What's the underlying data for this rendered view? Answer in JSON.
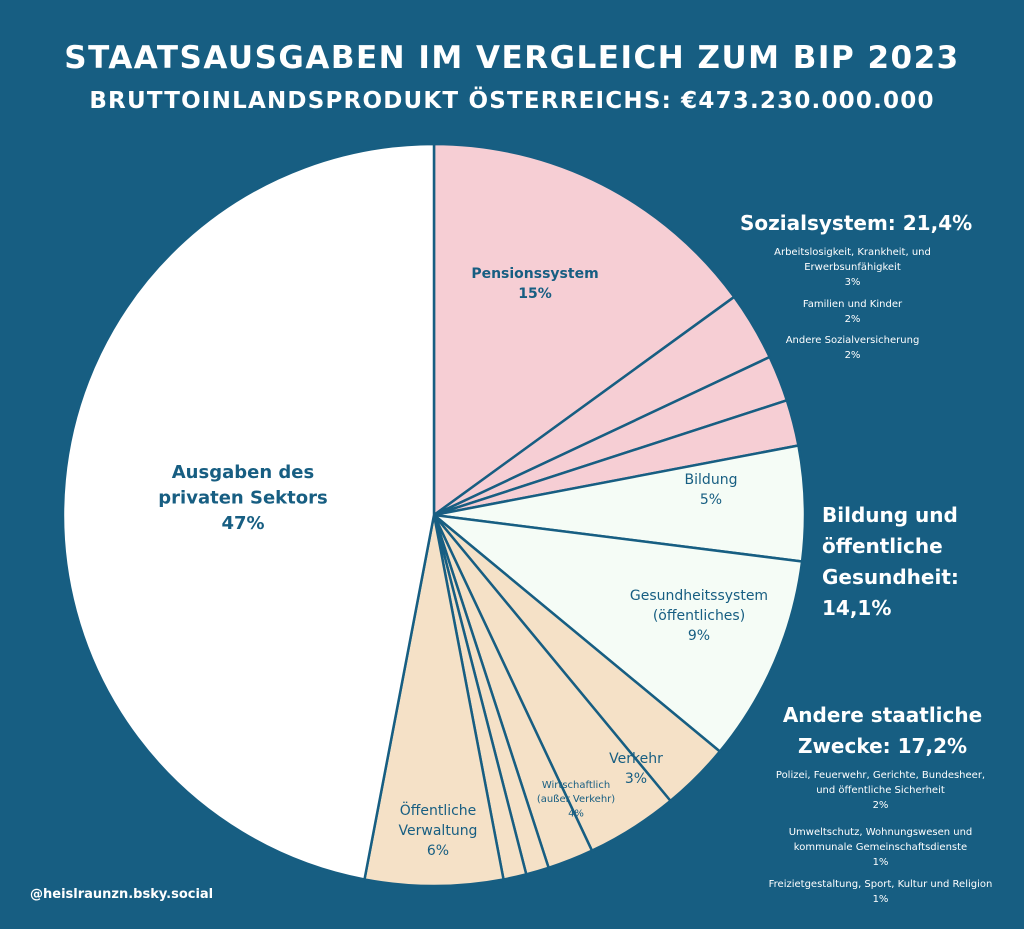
{
  "title": "STAATSAUSGABEN IM VERGLEICH ZUM BIP 2023",
  "subtitle": "BRUTTOINLANDSPRODUKT ÖSTERREICHS: €473.230.000.000",
  "credit": "@heislraunzn.bsky.social",
  "colors": {
    "background": "#175e82",
    "social": "#f6ced4",
    "health": "#f5fcf6",
    "other": "#f5e1c7",
    "private": "#ffffff",
    "stroke": "#175e82",
    "label": "#175e82"
  },
  "groups": {
    "social": {
      "title": "Sozialsystem: 21,4%",
      "notes": [
        {
          "label": "Arbeitslosigkeit, Krankheit, und Erwerbsunfähigkeit",
          "value": "3%"
        },
        {
          "label": "Familien und Kinder",
          "value": "2%"
        },
        {
          "label": "Andere Sozialversicherung",
          "value": "2%"
        }
      ]
    },
    "health": {
      "title": "Bildung und öffentliche Gesundheit: 14,1%"
    },
    "other": {
      "title": "Andere staatliche Zwecke: 17,2%",
      "notes": [
        {
          "label": "Polizei, Feuerwehr, Gerichte, Bundesheer, und öffentliche Sicherheit",
          "value": "2%"
        },
        {
          "label": "Umweltschutz, Wohnungswesen und kommunale Gemeinschaftsdienste",
          "value": "1%"
        },
        {
          "label": "Freizietgestaltung, Sport, Kultur und Religion",
          "value": "1%"
        }
      ]
    }
  },
  "chart_data": {
    "type": "pie",
    "title": "STAATSAUSGABEN IM VERGLEICH ZUM BIP 2023",
    "unit": "%",
    "slices": [
      {
        "label": "Pensionssystem",
        "value": 15,
        "display": "15%",
        "group": "social",
        "labeled": true
      },
      {
        "label": "Arbeitslosigkeit, Krankheit, und Erwerbsunfähigkeit",
        "value": 3,
        "display": "3%",
        "group": "social",
        "labeled": false
      },
      {
        "label": "Familien und Kinder",
        "value": 2,
        "display": "2%",
        "group": "social",
        "labeled": false
      },
      {
        "label": "Andere Sozialversicherung",
        "value": 2,
        "display": "2%",
        "group": "social",
        "labeled": false
      },
      {
        "label": "Bildung",
        "value": 5,
        "display": "5%",
        "group": "health",
        "labeled": true
      },
      {
        "label": "Gesundheitssystem (öffentliches)",
        "value": 9,
        "display": "9%",
        "group": "health",
        "labeled": true
      },
      {
        "label": "Verkehr",
        "value": 3,
        "display": "3%",
        "group": "other",
        "labeled": true
      },
      {
        "label": "Wirtschaftlich (außer Verkehr)",
        "value": 4,
        "display": "4%",
        "group": "other",
        "labeled": true
      },
      {
        "label": "Polizei, Feuerwehr, Gerichte, Bundesheer, und öffentliche Sicherheit",
        "value": 2,
        "display": "2%",
        "group": "other",
        "labeled": false
      },
      {
        "label": "Umweltschutz, Wohnungswesen und kommunale Gemeinschaftsdienste",
        "value": 1,
        "display": "1%",
        "group": "other",
        "labeled": false
      },
      {
        "label": "Freizietgestaltung, Sport, Kultur und Religion",
        "value": 1,
        "display": "1%",
        "group": "other",
        "labeled": false
      },
      {
        "label": "Öffentliche Verwaltung",
        "value": 6,
        "display": "6%",
        "group": "other",
        "labeled": true
      },
      {
        "label": "Ausgaben des privaten Sektors",
        "value": 47,
        "display": "47%",
        "group": "private",
        "labeled": true
      }
    ]
  }
}
